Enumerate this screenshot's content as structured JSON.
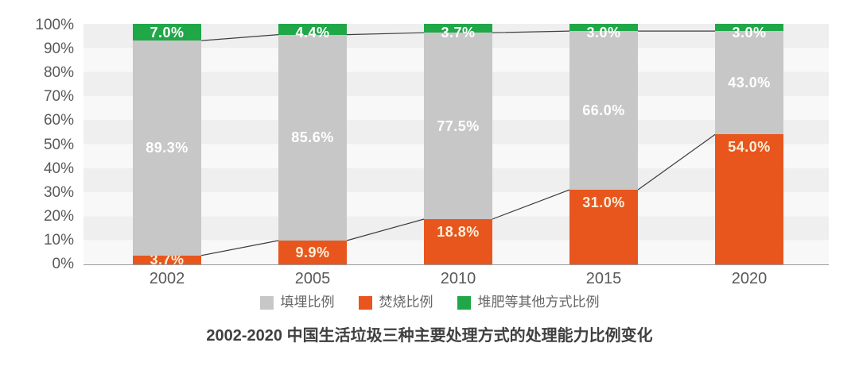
{
  "chart_data": {
    "type": "bar",
    "subtype": "stacked-percentage-with-trend-lines",
    "title": "2002-2020 中国生活垃圾三种主要处理方式的处理能力比例变化",
    "categories": [
      "2002",
      "2005",
      "2010",
      "2015",
      "2020"
    ],
    "series": [
      {
        "name": "填埋比例",
        "color": "#c7c7c7",
        "label_color": "#ffffff",
        "values": [
          89.3,
          85.6,
          77.5,
          66.0,
          43.0
        ]
      },
      {
        "name": "焚烧比例",
        "color": "#e8561d",
        "label_color": "#f9efda",
        "values": [
          3.7,
          9.9,
          18.8,
          31.0,
          54.0
        ]
      },
      {
        "name": "堆肥等其他方式比例",
        "color": "#20a748",
        "label_color": "#ffffff",
        "values": [
          7.0,
          4.4,
          3.7,
          3.0,
          3.0
        ]
      }
    ],
    "stack_order_bottom_to_top": [
      "焚烧比例",
      "填埋比例",
      "堆肥等其他方式比例"
    ],
    "segment_labels": {
      "填埋比例": [
        "89.3%",
        "85.6%",
        "77.5%",
        "66.0%",
        "43.0%"
      ],
      "焚烧比例": [
        "3.7%",
        "9.9%",
        "18.8%",
        "31.0%",
        "54.0%"
      ],
      "堆肥等其他方式比例": [
        "7.0%",
        "4.4%",
        "3.7%",
        "3.0%",
        "3.0%"
      ]
    },
    "trend_lines": [
      {
        "name": "incineration-share-top",
        "values": [
          3.7,
          9.9,
          18.8,
          31.0,
          54.0
        ],
        "color": "#3d3d3d"
      },
      {
        "name": "landfill-plus-incineration-top",
        "values": [
          93.0,
          95.5,
          96.3,
          97.0,
          97.0
        ],
        "color": "#3d3d3d"
      }
    ],
    "y_ticks": [
      "100%",
      "90%",
      "80%",
      "70%",
      "60%",
      "50%",
      "40%",
      "30%",
      "20%",
      "10%",
      "0%"
    ],
    "ylim": [
      0,
      100
    ],
    "xlabel": "",
    "ylabel": "",
    "grid": "horizontal-stripes",
    "legend_position": "bottom",
    "axis_text_color": "#595959",
    "stripe_colors": [
      "#efefef",
      "#f8f8f8"
    ]
  }
}
